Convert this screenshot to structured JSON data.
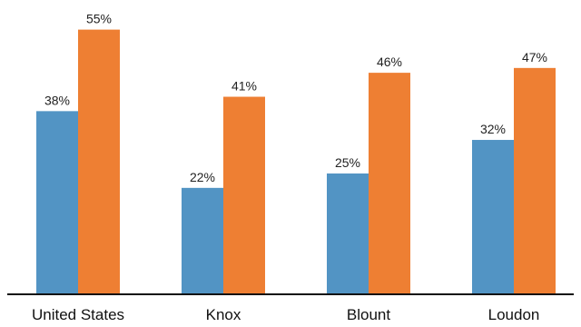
{
  "chart_data": {
    "type": "bar",
    "categories": [
      "United States",
      "Knox",
      "Blount",
      "Loudon"
    ],
    "series": [
      {
        "values": [
          38,
          22,
          25,
          32
        ],
        "labels": [
          "38%",
          "22%",
          "25%",
          "32%"
        ],
        "color": "#5294c4"
      },
      {
        "values": [
          55,
          41,
          46,
          47
        ],
        "labels": [
          "55%",
          "41%",
          "46%",
          "47%"
        ],
        "color": "#ee7f33"
      }
    ],
    "ylim": [
      0,
      60
    ],
    "grid": false,
    "legend": "none",
    "title": "",
    "xlabel": "",
    "ylabel": ""
  }
}
